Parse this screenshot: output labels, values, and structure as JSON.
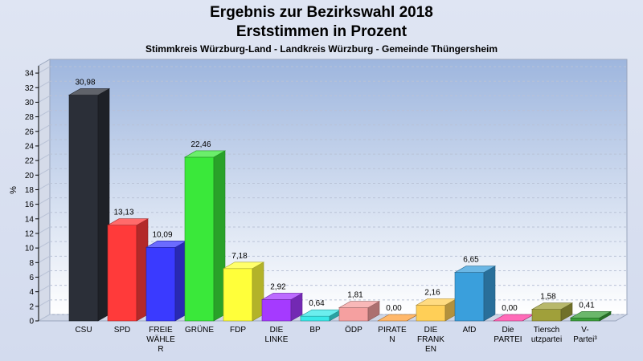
{
  "title": "Ergebnis zur Bezirkswahl 2018",
  "subtitle_line": "Erststimmen in Prozent",
  "subtitle": "Stimmkreis Würzburg-Land - Landkreis Würzburg - Gemeinde Thüngersheim",
  "chart_data": {
    "type": "bar",
    "ylabel": "%",
    "ylim": [
      0,
      35
    ],
    "yticks": [
      0,
      2,
      4,
      6,
      8,
      10,
      12,
      14,
      16,
      18,
      20,
      22,
      24,
      26,
      28,
      30,
      32,
      34
    ],
    "grid": true,
    "categories": [
      [
        "CSU"
      ],
      [
        "SPD"
      ],
      [
        "FREIE",
        "WÄHLE",
        "R"
      ],
      [
        "GRÜNE"
      ],
      [
        "FDP"
      ],
      [
        "DIE",
        "LINKE"
      ],
      [
        "BP"
      ],
      [
        "ÖDP"
      ],
      [
        "PIRATE",
        "N"
      ],
      [
        "DIE",
        "FRANK",
        "EN"
      ],
      [
        "AfD"
      ],
      [
        "Die",
        "PARTEI"
      ],
      [
        "Tiersch",
        "utzpartei"
      ],
      [
        "V-",
        "Partei³"
      ]
    ],
    "values": [
      30.98,
      13.13,
      10.09,
      22.46,
      7.18,
      2.92,
      0.64,
      1.81,
      0.0,
      2.16,
      6.65,
      0.0,
      1.58,
      0.41
    ],
    "labels": [
      "30,98",
      "13,13",
      "10,09",
      "22,46",
      "7,18",
      "2,92",
      "0,64",
      "1,81",
      "0,00",
      "2,16",
      "6,65",
      "0,00",
      "1,58",
      "0,41"
    ],
    "colors": [
      "#2b2f38",
      "#ff3a3a",
      "#3a3aff",
      "#3ae83a",
      "#ffff3a",
      "#a53aff",
      "#3ae8e8",
      "#f5a0a0",
      "#ffa03a",
      "#ffcf57",
      "#3a9fdc",
      "#ff3aa0",
      "#a0a03a",
      "#3a9f3a"
    ]
  }
}
